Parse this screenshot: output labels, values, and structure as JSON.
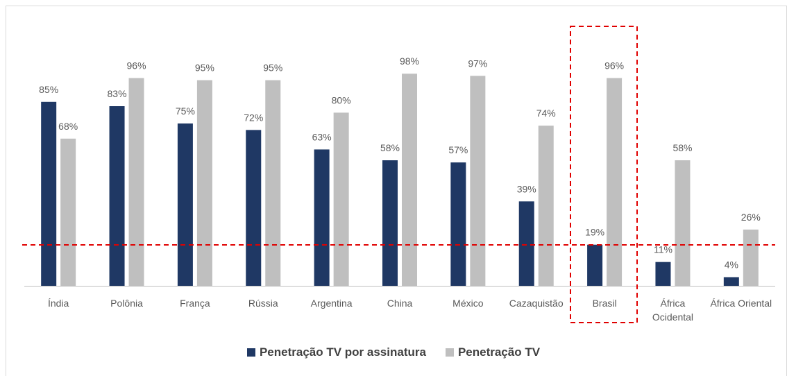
{
  "chart_data": {
    "type": "bar",
    "categories": [
      "Índia",
      "Polônia",
      "França",
      "Rússia",
      "Argentina",
      "China",
      "México",
      "Cazaquistão",
      "Brasil",
      "África Ocidental",
      "África Oriental"
    ],
    "series": [
      {
        "name": "Penetração TV por assinatura",
        "color": "#1f3864",
        "values": [
          85,
          83,
          75,
          72,
          63,
          58,
          57,
          39,
          19,
          11,
          4
        ],
        "value_labels": [
          "85%",
          "83%",
          "75%",
          "72%",
          "63%",
          "58%",
          "57%",
          "39%",
          "19%",
          "11%",
          "4%"
        ]
      },
      {
        "name": "Penetração TV",
        "color": "#bfbfbf",
        "values": [
          68,
          96,
          95,
          95,
          80,
          98,
          97,
          74,
          96,
          58,
          26
        ],
        "value_labels": [
          "68%",
          "96%",
          "95%",
          "95%",
          "80%",
          "98%",
          "97%",
          "74%",
          "96%",
          "58%",
          "26%"
        ]
      }
    ]
  }
}
